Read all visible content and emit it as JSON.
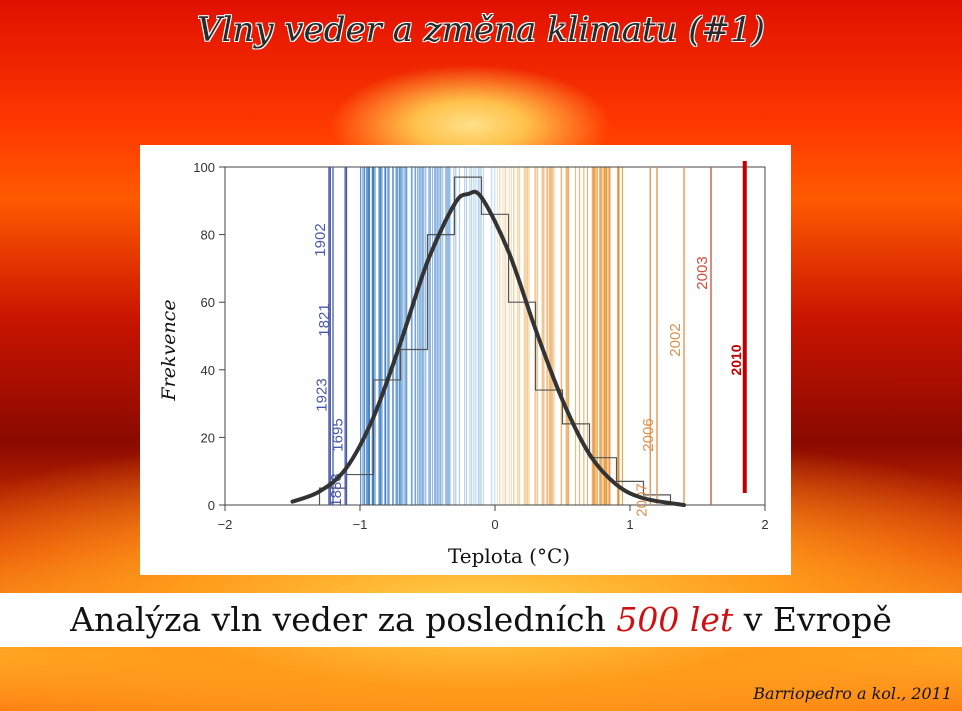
{
  "title": "Vlny veder a změna klimatu (#1)",
  "subtitle": {
    "prefix": "Analýza vln veder za posledních ",
    "highlight": "500 let",
    "suffix": " v Evropě"
  },
  "credit": "Barriopedro a kol., 2011",
  "chart_data": {
    "type": "bar",
    "xlabel": "Teplota (°C)",
    "ylabel": "Frekvence",
    "xlim": [
      -2,
      2
    ],
    "ylim": [
      0,
      100
    ],
    "xticks": [
      "−2",
      "−1",
      "0",
      "1",
      "2"
    ],
    "yticks": [
      "0",
      "20",
      "40",
      "60",
      "80",
      "100"
    ],
    "histogram": {
      "bin_edges": [
        -1.3,
        -1.1,
        -0.9,
        -0.7,
        -0.5,
        -0.3,
        -0.1,
        0.1,
        0.3,
        0.5,
        0.7,
        0.9,
        1.1,
        1.3
      ],
      "values": [
        5,
        9,
        37,
        46,
        80,
        97,
        86,
        60,
        34,
        24,
        14,
        7,
        3
      ]
    },
    "fit_curve": {
      "x": [
        -1.5,
        -1.3,
        -1.1,
        -0.9,
        -0.7,
        -0.5,
        -0.3,
        -0.2,
        -0.1,
        0.1,
        0.3,
        0.5,
        0.7,
        0.9,
        1.1,
        1.4
      ],
      "y": [
        1,
        4,
        11,
        26,
        48,
        72,
        89,
        92,
        91,
        75,
        52,
        31,
        15,
        6,
        2,
        0
      ]
    },
    "year_lines": [
      {
        "year": "1902",
        "x": -1.23,
        "color": "#4a5aa8"
      },
      {
        "year": "1821",
        "x": -1.2,
        "color": "#4a5aa8"
      },
      {
        "year": "1923",
        "x": -1.22,
        "color": "#4a5aa8"
      },
      {
        "year": "1695",
        "x": -1.1,
        "color": "#4a5aa8"
      },
      {
        "year": "1888",
        "x": -1.11,
        "color": "#4a5aa8"
      },
      {
        "year": "2007",
        "x": 1.15,
        "color": "#e0904a"
      },
      {
        "year": "2006",
        "x": 1.2,
        "color": "#e0904a"
      },
      {
        "year": "2002",
        "x": 1.4,
        "color": "#e0904a"
      },
      {
        "year": "2003",
        "x": 1.6,
        "color": "#d04a3a"
      },
      {
        "year": "2010",
        "x": 1.85,
        "color": "#c00000"
      }
    ],
    "colors": {
      "cold": "#3a78c0",
      "warm": "#e8a040",
      "fit": "#333333",
      "histogram": "#555555"
    }
  }
}
